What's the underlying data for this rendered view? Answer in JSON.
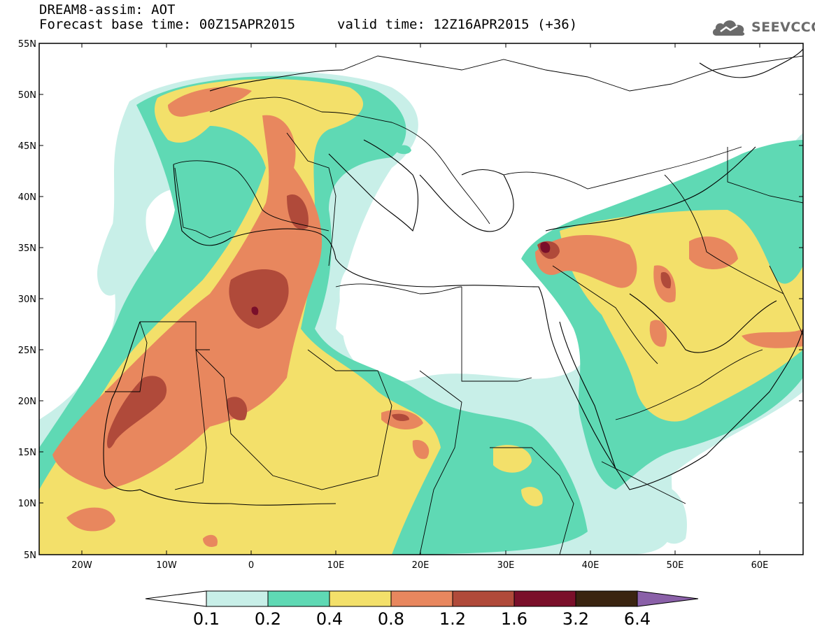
{
  "header": {
    "title": "DREAM8-assim: AOT",
    "base_time": "Forecast base time: 00Z15APR2015",
    "valid_time": "valid time: 12Z16APR2015 (+36)",
    "logo_text": "SEEVCCC"
  },
  "map": {
    "lat_labels": [
      "55N",
      "50N",
      "45N",
      "40N",
      "35N",
      "30N",
      "25N",
      "20N",
      "15N",
      "10N",
      "5N"
    ],
    "lon_labels": [
      "20W",
      "10W",
      "0",
      "10E",
      "20E",
      "30E",
      "40E",
      "50E",
      "60E"
    ],
    "lat_range": [
      5,
      55
    ],
    "lon_range": [
      -25,
      65
    ]
  },
  "colorbar": {
    "levels": [
      "0.1",
      "0.2",
      "0.4",
      "0.8",
      "1.2",
      "1.6",
      "3.2",
      "6.4"
    ],
    "colors": [
      "#c8efe8",
      "#5fd9b4",
      "#f3e06a",
      "#e8875e",
      "#b04a3a",
      "#7a0f2a",
      "#3a2410",
      "#8a60a8"
    ]
  }
}
